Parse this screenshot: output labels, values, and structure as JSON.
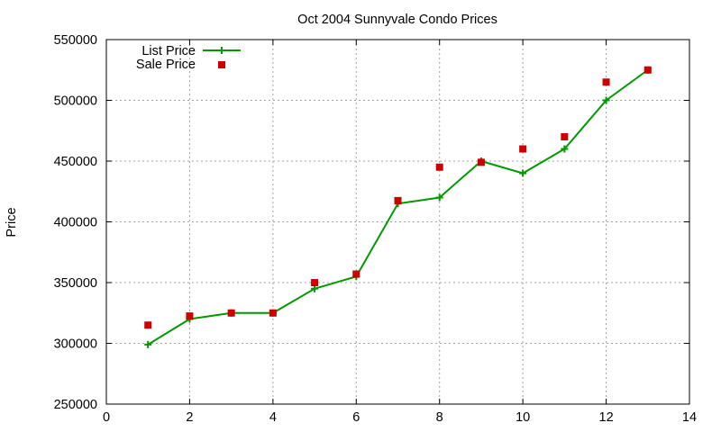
{
  "chart_data": {
    "type": "line",
    "title": "Oct 2004 Sunnyvale Condo Prices",
    "xlabel": "",
    "ylabel": "Price",
    "xlim": [
      0,
      14
    ],
    "ylim": [
      250000,
      550000
    ],
    "x_ticks": [
      0,
      2,
      4,
      6,
      8,
      10,
      12,
      14
    ],
    "y_ticks": [
      250000,
      300000,
      350000,
      400000,
      450000,
      500000,
      550000
    ],
    "x_tick_labels": [
      "0",
      "2",
      "4",
      "6",
      "8",
      "10",
      "12",
      "14"
    ],
    "y_tick_labels": [
      "250000",
      "300000",
      "350000",
      "400000",
      "450000",
      "500000",
      "550000"
    ],
    "grid": true,
    "legend_position": "top-left",
    "series": [
      {
        "name": "List Price",
        "type": "line",
        "marker": "plus",
        "color": "#009900",
        "x": [
          1,
          2,
          3,
          4,
          5,
          6,
          7,
          8,
          9,
          10,
          11,
          12,
          13
        ],
        "values": [
          299000,
          320000,
          325000,
          325000,
          345000,
          355000,
          415000,
          420000,
          450000,
          440000,
          460000,
          500000,
          525000
        ]
      },
      {
        "name": "Sale Price",
        "type": "scatter",
        "marker": "square",
        "color": "#cc0000",
        "x": [
          1,
          2,
          3,
          4,
          5,
          6,
          7,
          8,
          9,
          10,
          11,
          12,
          13
        ],
        "values": [
          315000,
          322500,
          325000,
          325000,
          350000,
          357000,
          417500,
          445000,
          449000,
          460000,
          470000,
          515000,
          525000
        ]
      }
    ]
  }
}
